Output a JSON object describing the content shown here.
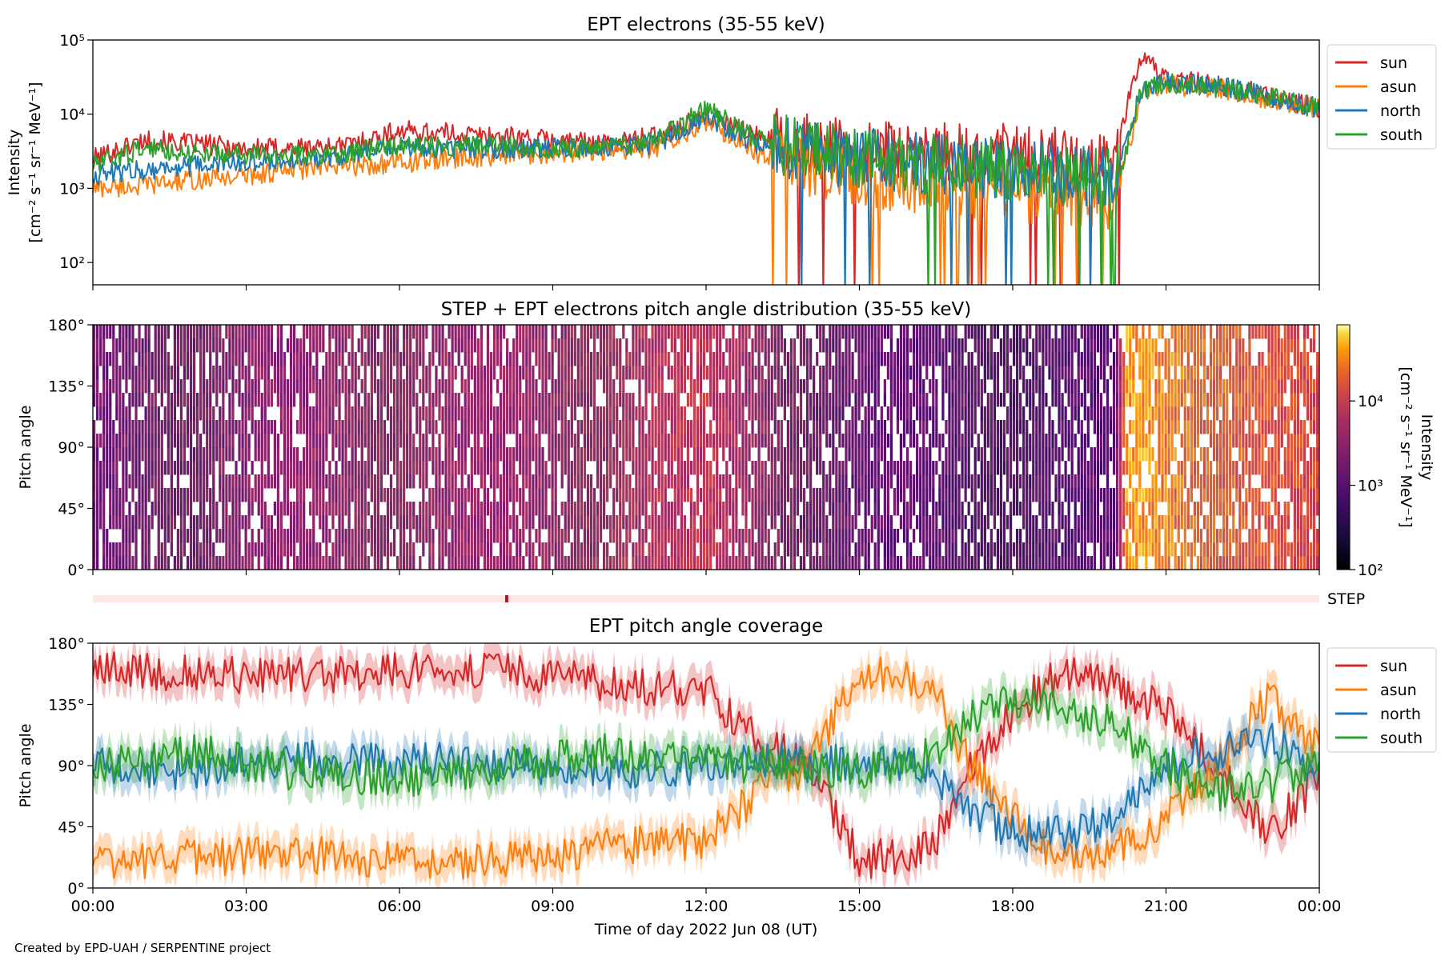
{
  "footer": {
    "credit": "Created by EPD-UAH / SERPENTINE project"
  },
  "colors": {
    "sun": "#d62728",
    "asun": "#ff7f0e",
    "north": "#1f77b4",
    "south": "#2ca02c"
  },
  "chart_data": [
    {
      "type": "line",
      "title": "EPT electrons (35-55 keV)",
      "ylabel_line1": "Intensity",
      "ylabel_line2": "[cm⁻² s⁻¹ sr⁻¹ MeV⁻¹]",
      "yscale": "log",
      "ylim": [
        50,
        100000
      ],
      "yticks": [
        {
          "v": 100,
          "label": "10²"
        },
        {
          "v": 1000,
          "label": "10³"
        },
        {
          "v": 10000,
          "label": "10⁴"
        },
        {
          "v": 100000,
          "label": "10⁵"
        }
      ],
      "xlim_hours": [
        0,
        24
      ],
      "legend": {
        "position": "outside-right",
        "entries": [
          "sun",
          "asun",
          "north",
          "south"
        ]
      },
      "series": [
        {
          "name": "sun",
          "x": [
            0,
            1,
            2,
            3,
            4,
            5,
            6,
            7,
            8,
            9,
            10,
            11,
            12,
            13,
            14,
            15,
            16,
            17,
            18,
            19,
            20,
            20.25,
            20.5,
            21,
            22,
            23,
            24
          ],
          "values": [
            2500,
            4500,
            4000,
            3500,
            3500,
            3800,
            6000,
            5500,
            5000,
            4500,
            4000,
            5000,
            9500,
            5000,
            4000,
            3000,
            3000,
            3000,
            3000,
            2500,
            2000,
            15000,
            60000,
            30000,
            25000,
            18000,
            12000
          ]
        },
        {
          "name": "asun",
          "x": [
            0,
            1,
            2,
            3,
            4,
            5,
            6,
            7,
            8,
            9,
            10,
            11,
            12,
            13,
            14,
            15,
            16,
            17,
            18,
            19,
            20,
            20.25,
            20.5,
            21,
            22,
            23,
            24
          ],
          "values": [
            1000,
            1100,
            1300,
            1500,
            1800,
            2000,
            2200,
            2500,
            2800,
            3000,
            3200,
            3500,
            8000,
            3000,
            2000,
            1500,
            1200,
            1000,
            900,
            800,
            700,
            3000,
            20000,
            25000,
            22000,
            16000,
            12000
          ]
        },
        {
          "name": "north",
          "x": [
            0,
            1,
            2,
            3,
            4,
            5,
            6,
            7,
            8,
            9,
            10,
            11,
            12,
            13,
            14,
            15,
            16,
            17,
            18,
            19,
            20,
            20.25,
            20.5,
            21,
            22,
            23,
            24
          ],
          "values": [
            1500,
            1800,
            2000,
            2200,
            2500,
            2800,
            3500,
            3500,
            3500,
            3500,
            3500,
            4000,
            9000,
            4000,
            3000,
            2500,
            2200,
            2000,
            1800,
            1600,
            1400,
            4000,
            22000,
            27000,
            24000,
            17000,
            12000
          ]
        },
        {
          "name": "south",
          "x": [
            0,
            1,
            2,
            3,
            4,
            5,
            6,
            7,
            8,
            9,
            10,
            11,
            12,
            13,
            14,
            15,
            16,
            17,
            18,
            19,
            20,
            20.25,
            20.5,
            21,
            22,
            23,
            24
          ],
          "values": [
            2000,
            3500,
            3000,
            2800,
            2800,
            3000,
            3800,
            3800,
            3800,
            3500,
            3500,
            4200,
            12000,
            4500,
            3200,
            2600,
            2200,
            2000,
            1800,
            1500,
            1300,
            3500,
            21000,
            26000,
            23000,
            17000,
            12000
          ]
        }
      ]
    },
    {
      "type": "heatmap",
      "title": "STEP + EPT electrons pitch angle distribution (35-55 keV)",
      "ylabel": "Pitch angle",
      "ylim": [
        0,
        180
      ],
      "yticks": [
        "0°",
        "45°",
        "90°",
        "135°",
        "180°"
      ],
      "xlim_hours": [
        0,
        24
      ],
      "colorbar": {
        "label_line1": "Intensity",
        "label_line2": "[cm⁻² s⁻¹ sr⁻¹ MeV⁻¹]",
        "scale": "log",
        "range": [
          100,
          80000
        ],
        "ticks": [
          {
            "v": 100,
            "label": "10²"
          },
          {
            "v": 1000,
            "label": "10³"
          },
          {
            "v": 10000,
            "label": "10⁴"
          }
        ],
        "colormap": "inferno"
      },
      "intensity_profile": {
        "x": [
          0,
          3,
          6,
          9,
          12,
          13.5,
          15,
          18,
          20,
          20.25,
          21,
          22,
          23,
          24
        ],
        "values": [
          1500,
          2500,
          3500,
          3500,
          8000,
          2500,
          1200,
          1000,
          900,
          40000,
          30000,
          20000,
          15000,
          12000
        ]
      }
    },
    {
      "type": "bar",
      "title": "",
      "label": "STEP",
      "marker_hours": 8.1
    },
    {
      "type": "line",
      "title": "EPT pitch angle coverage",
      "ylabel": "Pitch angle",
      "xlabel": "Time of day 2022 Jun 08 (UT)",
      "ylim": [
        0,
        180
      ],
      "yticks": [
        "0°",
        "45°",
        "90°",
        "135°",
        "180°"
      ],
      "xticks": [
        "00:00",
        "03:00",
        "06:00",
        "09:00",
        "12:00",
        "15:00",
        "18:00",
        "21:00",
        "00:00"
      ],
      "legend": {
        "position": "outside-right",
        "entries": [
          "sun",
          "asun",
          "north",
          "south"
        ]
      },
      "series": [
        {
          "name": "sun",
          "x": [
            0,
            2,
            4,
            6,
            8,
            10,
            12,
            13,
            14,
            15,
            16,
            16.5,
            17,
            18,
            19,
            20,
            21,
            22,
            23,
            24
          ],
          "values": [
            160,
            158,
            155,
            160,
            160,
            150,
            145,
            110,
            90,
            20,
            25,
            35,
            80,
            130,
            160,
            150,
            130,
            90,
            40,
            80
          ]
        },
        {
          "name": "asun",
          "x": [
            0,
            2,
            4,
            6,
            8,
            10,
            12,
            13,
            14,
            15,
            16,
            16.5,
            17,
            18,
            19,
            20,
            21,
            22,
            23,
            24
          ],
          "values": [
            20,
            22,
            25,
            20,
            20,
            30,
            35,
            70,
            90,
            160,
            155,
            145,
            100,
            50,
            20,
            30,
            50,
            90,
            140,
            100
          ]
        },
        {
          "name": "north",
          "x": [
            0,
            2,
            4,
            6,
            8,
            10,
            12,
            13,
            14,
            15,
            16,
            16.5,
            17,
            18,
            19,
            20,
            21,
            22,
            23,
            24
          ],
          "values": [
            90,
            85,
            95,
            95,
            90,
            85,
            90,
            95,
            90,
            95,
            90,
            80,
            60,
            40,
            40,
            50,
            90,
            100,
            110,
            85
          ]
        },
        {
          "name": "south",
          "x": [
            0,
            2,
            4,
            6,
            8,
            10,
            12,
            13,
            14,
            15,
            16,
            16.5,
            17,
            18,
            19,
            20,
            21,
            22,
            23,
            24
          ],
          "values": [
            90,
            100,
            85,
            80,
            90,
            100,
            95,
            90,
            90,
            85,
            90,
            100,
            120,
            140,
            130,
            120,
            90,
            70,
            75,
            95
          ]
        }
      ]
    }
  ]
}
